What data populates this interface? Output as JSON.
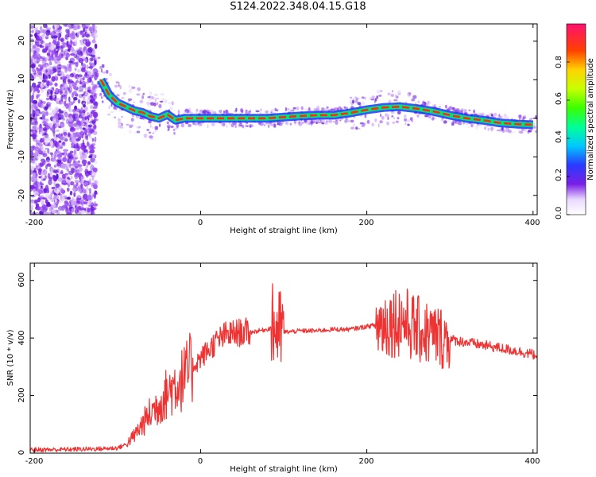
{
  "title": "S124.2022.348.04.15.G18",
  "chart_data": [
    {
      "type": "heatmap",
      "xlabel": "Height of straight line (km)",
      "ylabel": "Frequency (Hz)",
      "xlim": [
        -205,
        405
      ],
      "ylim": [
        -25,
        24.5
      ],
      "x_ticks": [
        "-200",
        "0",
        "200",
        "400"
      ],
      "y_ticks": [
        "-20",
        "-10",
        "0",
        "10",
        "20"
      ],
      "colorbar": {
        "label": "Normalized spectral amplitude",
        "range": [
          0,
          1
        ],
        "ticks": [
          "0.0",
          "0.2",
          "0.4",
          "0.6",
          "0.8"
        ]
      },
      "ridge_frequency": {
        "x": [
          -120,
          -110,
          -100,
          -90,
          -80,
          -70,
          -60,
          -50,
          -40,
          -30,
          -20,
          0,
          20,
          40,
          60,
          80,
          100,
          120,
          140,
          160,
          180,
          200,
          220,
          240,
          260,
          280,
          300,
          320,
          340,
          360,
          380,
          400
        ],
        "y": [
          10,
          6,
          4,
          3,
          2,
          1.5,
          0.5,
          0,
          1,
          -0.5,
          0,
          0,
          0,
          0,
          0,
          0,
          0.3,
          0.6,
          0.8,
          0.8,
          1.4,
          2.2,
          2.8,
          3,
          2.5,
          1.8,
          0.8,
          0,
          -0.5,
          -1.2,
          -1.5,
          -1.7
        ]
      }
    },
    {
      "type": "line",
      "xlabel": "Height of straight line (km)",
      "ylabel": "SNR (10 * v/v)",
      "xlim": [
        -205,
        405
      ],
      "ylim": [
        0,
        660
      ],
      "x_ticks": [
        "-200",
        "0",
        "200",
        "400"
      ],
      "y_ticks": [
        "0",
        "200",
        "400",
        "600"
      ],
      "series": [
        {
          "color": "#ef3232",
          "x": [
            -205,
            -180,
            -160,
            -140,
            -120,
            -100,
            -90,
            -80,
            -70,
            -60,
            -50,
            -40,
            -30,
            -20,
            -10,
            0,
            10,
            20,
            30,
            40,
            50,
            60,
            70,
            80,
            88,
            92,
            96,
            100,
            120,
            140,
            160,
            180,
            200,
            220,
            240,
            260,
            280,
            300,
            320,
            340,
            360,
            380,
            405
          ],
          "y": [
            12,
            12,
            13,
            14,
            15,
            18,
            30,
            60,
            100,
            140,
            170,
            210,
            240,
            260,
            300,
            330,
            360,
            390,
            410,
            415,
            420,
            420,
            425,
            430,
            440,
            430,
            425,
            420,
            425,
            425,
            430,
            430,
            440,
            450,
            465,
            430,
            410,
            395,
            385,
            375,
            365,
            355,
            340
          ]
        }
      ]
    }
  ]
}
